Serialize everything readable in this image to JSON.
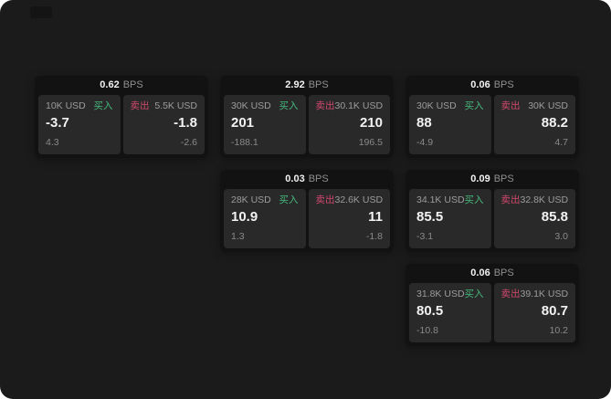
{
  "labels": {
    "buy": "买入",
    "sell": "卖出",
    "unit": "BPS"
  },
  "colors": {
    "buy": "#46b97c",
    "sell": "#d2486e",
    "background": "#1b1b1b"
  },
  "cards": [
    {
      "bps": "0.62",
      "buy": {
        "amount": "10K USD",
        "value": "-3.7",
        "delta": "4.3"
      },
      "sell": {
        "amount": "5.5K USD",
        "value": "-1.8",
        "delta": "-2.6"
      }
    },
    {
      "bps": "2.92",
      "buy": {
        "amount": "30K USD",
        "value": "201",
        "delta": "-188.1"
      },
      "sell": {
        "amount": "30.1K USD",
        "value": "210",
        "delta": "196.5"
      }
    },
    {
      "bps": "0.06",
      "buy": {
        "amount": "30K USD",
        "value": "88",
        "delta": "-4.9"
      },
      "sell": {
        "amount": "30K USD",
        "value": "88.2",
        "delta": "4.7"
      }
    },
    {
      "bps": "0.03",
      "buy": {
        "amount": "28K USD",
        "value": "10.9",
        "delta": "1.3"
      },
      "sell": {
        "amount": "32.6K USD",
        "value": "11",
        "delta": "-1.8"
      }
    },
    {
      "bps": "0.09",
      "buy": {
        "amount": "34.1K USD",
        "value": "85.5",
        "delta": "-3.1"
      },
      "sell": {
        "amount": "32.8K USD",
        "value": "85.8",
        "delta": "3.0"
      }
    },
    {
      "bps": "0.06",
      "buy": {
        "amount": "31.8K USD",
        "value": "80.5",
        "delta": "-10.8"
      },
      "sell": {
        "amount": "39.1K USD",
        "value": "80.7",
        "delta": "10.2"
      }
    }
  ]
}
